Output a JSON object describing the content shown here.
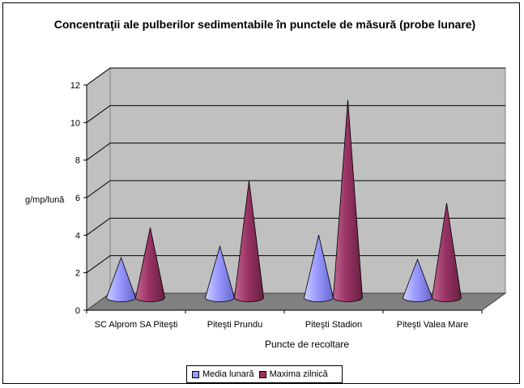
{
  "chart_data": {
    "type": "bar",
    "style": "3d-cone",
    "title": "Concentraţii ale pulberilor sedimentabile în punctele de măsură (probe lunare)",
    "xlabel": "Puncte de recoltare",
    "ylabel": "g/mp/lună",
    "ylim": [
      0,
      12
    ],
    "yticks": [
      0,
      2,
      4,
      6,
      8,
      10,
      12
    ],
    "grid": true,
    "legend_position": "bottom",
    "categories": [
      "SC Alprom SA Piteşti",
      "Piteşti Prundu",
      "Piteşti Stadion",
      "Piteşti Valea Mare"
    ],
    "series": [
      {
        "name": "Media lunară",
        "values": [
          2.4,
          3.0,
          3.6,
          2.3
        ],
        "color": "#9999ff"
      },
      {
        "name": "Maxima zilnică",
        "values": [
          4.0,
          6.5,
          10.8,
          5.3
        ],
        "color": "#993366"
      }
    ],
    "colors": {
      "wall": "#c0c0c0",
      "floor": "#808080",
      "gridline": "#000000"
    }
  }
}
